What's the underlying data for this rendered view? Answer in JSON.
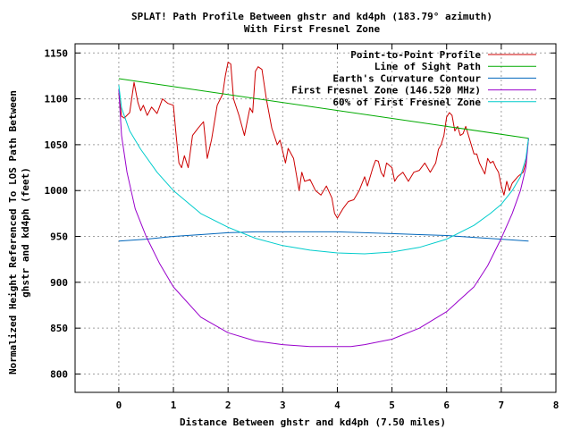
{
  "chart_data": {
    "type": "line",
    "title": "SPLAT! Path Profile Between ghstr and kd4ph (183.79° azimuth)",
    "subtitle": "With First Fresnel Zone",
    "xlabel": "Distance Between ghstr and kd4ph (7.50 miles)",
    "ylabel_line1": "Normalized Height Referenced To LOS Path Between",
    "ylabel_line2": "ghstr and kd4ph (feet)",
    "xlim": [
      -0.8,
      8
    ],
    "ylim": [
      780,
      1160
    ],
    "xticks": [
      "0",
      "1",
      "2",
      "3",
      "4",
      "5",
      "6",
      "7",
      "8"
    ],
    "yticks": [
      "800",
      "850",
      "900",
      "950",
      "1000",
      "1050",
      "1100",
      "1150"
    ],
    "grid": true,
    "legend_position": "top-right",
    "series": [
      {
        "name": "Point-to-Point Profile",
        "color": "#cc0000",
        "points": [
          [
            0.0,
            1106
          ],
          [
            0.05,
            1081
          ],
          [
            0.1,
            1079
          ],
          [
            0.2,
            1085
          ],
          [
            0.28,
            1118
          ],
          [
            0.35,
            1096
          ],
          [
            0.4,
            1087
          ],
          [
            0.45,
            1093
          ],
          [
            0.52,
            1082
          ],
          [
            0.6,
            1091
          ],
          [
            0.7,
            1084
          ],
          [
            0.8,
            1100
          ],
          [
            0.9,
            1095
          ],
          [
            1.0,
            1093
          ],
          [
            1.05,
            1060
          ],
          [
            1.1,
            1030
          ],
          [
            1.15,
            1025
          ],
          [
            1.2,
            1038
          ],
          [
            1.27,
            1025
          ],
          [
            1.35,
            1060
          ],
          [
            1.45,
            1068
          ],
          [
            1.55,
            1075
          ],
          [
            1.62,
            1035
          ],
          [
            1.7,
            1056
          ],
          [
            1.8,
            1093
          ],
          [
            1.9,
            1105
          ],
          [
            1.95,
            1125
          ],
          [
            2.0,
            1140
          ],
          [
            2.05,
            1138
          ],
          [
            2.1,
            1100
          ],
          [
            2.2,
            1082
          ],
          [
            2.3,
            1060
          ],
          [
            2.4,
            1090
          ],
          [
            2.45,
            1085
          ],
          [
            2.5,
            1130
          ],
          [
            2.55,
            1135
          ],
          [
            2.62,
            1132
          ],
          [
            2.7,
            1100
          ],
          [
            2.8,
            1068
          ],
          [
            2.9,
            1050
          ],
          [
            2.95,
            1055
          ],
          [
            3.05,
            1030
          ],
          [
            3.1,
            1046
          ],
          [
            3.2,
            1035
          ],
          [
            3.3,
            1000
          ],
          [
            3.35,
            1020
          ],
          [
            3.4,
            1010
          ],
          [
            3.5,
            1012
          ],
          [
            3.6,
            1000
          ],
          [
            3.7,
            995
          ],
          [
            3.8,
            1005
          ],
          [
            3.9,
            992
          ],
          [
            3.95,
            975
          ],
          [
            4.0,
            970
          ],
          [
            4.1,
            980
          ],
          [
            4.2,
            988
          ],
          [
            4.3,
            990
          ],
          [
            4.4,
            1000
          ],
          [
            4.5,
            1015
          ],
          [
            4.55,
            1005
          ],
          [
            4.65,
            1025
          ],
          [
            4.7,
            1033
          ],
          [
            4.75,
            1032
          ],
          [
            4.8,
            1020
          ],
          [
            4.85,
            1015
          ],
          [
            4.9,
            1030
          ],
          [
            5.0,
            1025
          ],
          [
            5.05,
            1010
          ],
          [
            5.1,
            1015
          ],
          [
            5.2,
            1020
          ],
          [
            5.3,
            1010
          ],
          [
            5.4,
            1020
          ],
          [
            5.5,
            1022
          ],
          [
            5.6,
            1030
          ],
          [
            5.7,
            1020
          ],
          [
            5.8,
            1030
          ],
          [
            5.85,
            1045
          ],
          [
            5.9,
            1050
          ],
          [
            5.95,
            1060
          ],
          [
            6.0,
            1080
          ],
          [
            6.05,
            1085
          ],
          [
            6.1,
            1082
          ],
          [
            6.15,
            1065
          ],
          [
            6.2,
            1070
          ],
          [
            6.25,
            1060
          ],
          [
            6.3,
            1062
          ],
          [
            6.35,
            1070
          ],
          [
            6.4,
            1060
          ],
          [
            6.5,
            1040
          ],
          [
            6.55,
            1040
          ],
          [
            6.6,
            1030
          ],
          [
            6.7,
            1018
          ],
          [
            6.75,
            1035
          ],
          [
            6.8,
            1030
          ],
          [
            6.85,
            1032
          ],
          [
            6.9,
            1025
          ],
          [
            6.95,
            1020
          ],
          [
            7.0,
            1005
          ],
          [
            7.05,
            995
          ],
          [
            7.1,
            1010
          ],
          [
            7.15,
            1000
          ],
          [
            7.2,
            1008
          ],
          [
            7.3,
            1015
          ],
          [
            7.4,
            1020
          ],
          [
            7.45,
            1030
          ],
          [
            7.5,
            1057
          ]
        ]
      },
      {
        "name": "Line of Sight Path",
        "color": "#00aa00",
        "points": [
          [
            0.0,
            1122
          ],
          [
            7.5,
            1057
          ]
        ]
      },
      {
        "name": "Earth's Curvature Contour",
        "color": "#0066bb",
        "points": [
          [
            0.0,
            945
          ],
          [
            0.5,
            947
          ],
          [
            1.0,
            950
          ],
          [
            1.5,
            952
          ],
          [
            2.0,
            954
          ],
          [
            2.5,
            955
          ],
          [
            3.0,
            955
          ],
          [
            3.5,
            955
          ],
          [
            4.0,
            955
          ],
          [
            4.5,
            954
          ],
          [
            5.0,
            953
          ],
          [
            5.5,
            952
          ],
          [
            6.0,
            951
          ],
          [
            6.5,
            949
          ],
          [
            7.0,
            947
          ],
          [
            7.5,
            945
          ]
        ]
      },
      {
        "name": "First Fresnel Zone (146.520 MHz)",
        "color": "#9900cc",
        "points": [
          [
            0.0,
            1110
          ],
          [
            0.05,
            1060
          ],
          [
            0.15,
            1020
          ],
          [
            0.3,
            980
          ],
          [
            0.5,
            950
          ],
          [
            0.75,
            920
          ],
          [
            1.0,
            895
          ],
          [
            1.5,
            862
          ],
          [
            2.0,
            845
          ],
          [
            2.5,
            836
          ],
          [
            3.0,
            832
          ],
          [
            3.5,
            830
          ],
          [
            4.0,
            830
          ],
          [
            4.25,
            830
          ],
          [
            4.5,
            832
          ],
          [
            5.0,
            838
          ],
          [
            5.5,
            850
          ],
          [
            6.0,
            868
          ],
          [
            6.5,
            895
          ],
          [
            6.75,
            918
          ],
          [
            7.0,
            948
          ],
          [
            7.2,
            975
          ],
          [
            7.35,
            1000
          ],
          [
            7.45,
            1025
          ],
          [
            7.5,
            1057
          ]
        ]
      },
      {
        "name": "60% of First Fresnel Zone",
        "color": "#00cccc",
        "points": [
          [
            0.0,
            1115
          ],
          [
            0.05,
            1090
          ],
          [
            0.2,
            1065
          ],
          [
            0.4,
            1045
          ],
          [
            0.7,
            1020
          ],
          [
            1.0,
            1000
          ],
          [
            1.5,
            975
          ],
          [
            2.0,
            960
          ],
          [
            2.5,
            948
          ],
          [
            3.0,
            940
          ],
          [
            3.5,
            935
          ],
          [
            4.0,
            932
          ],
          [
            4.5,
            931
          ],
          [
            5.0,
            933
          ],
          [
            5.5,
            938
          ],
          [
            6.0,
            947
          ],
          [
            6.5,
            962
          ],
          [
            6.8,
            975
          ],
          [
            7.0,
            985
          ],
          [
            7.2,
            1000
          ],
          [
            7.35,
            1015
          ],
          [
            7.45,
            1035
          ],
          [
            7.5,
            1057
          ]
        ]
      }
    ]
  }
}
